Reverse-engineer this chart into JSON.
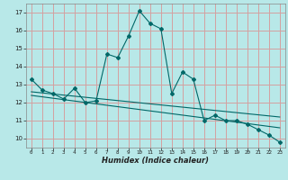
{
  "title": "",
  "xlabel": "Humidex (Indice chaleur)",
  "background_color": "#b8e8e8",
  "grid_color": "#d4a0a0",
  "line_color": "#006868",
  "xlim": [
    -0.5,
    23.5
  ],
  "ylim": [
    9.5,
    17.5
  ],
  "xticks": [
    0,
    1,
    2,
    3,
    4,
    5,
    6,
    7,
    8,
    9,
    10,
    11,
    12,
    13,
    14,
    15,
    16,
    17,
    18,
    19,
    20,
    21,
    22,
    23
  ],
  "yticks": [
    10,
    11,
    12,
    13,
    14,
    15,
    16,
    17
  ],
  "curve1_x": [
    0,
    1,
    2,
    3,
    4,
    5,
    6,
    7,
    8,
    9,
    10,
    11,
    12,
    13,
    14,
    15,
    16,
    17,
    18,
    19,
    20,
    21,
    22,
    23
  ],
  "curve1_y": [
    13.3,
    12.7,
    12.5,
    12.2,
    12.8,
    12.0,
    12.1,
    14.7,
    14.5,
    15.7,
    17.1,
    16.4,
    16.1,
    12.5,
    13.7,
    13.3,
    11.0,
    11.3,
    11.0,
    11.0,
    10.8,
    10.5,
    10.2,
    9.8
  ],
  "curve2_x": [
    0,
    23
  ],
  "curve2_y": [
    12.6,
    11.2
  ],
  "curve3_x": [
    0,
    23
  ],
  "curve3_y": [
    12.4,
    10.6
  ]
}
